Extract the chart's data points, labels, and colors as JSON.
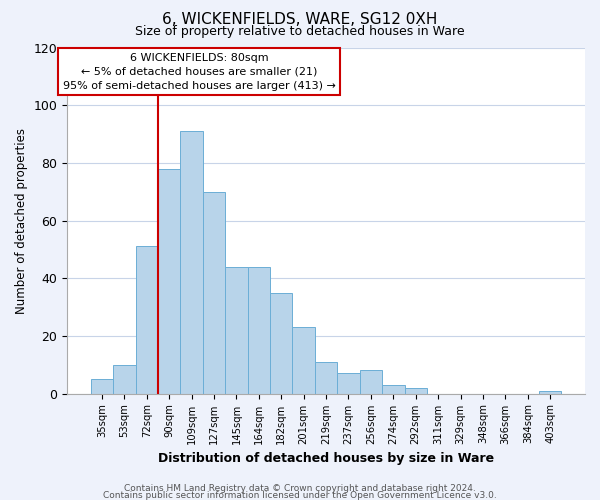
{
  "title": "6, WICKENFIELDS, WARE, SG12 0XH",
  "subtitle": "Size of property relative to detached houses in Ware",
  "xlabel": "Distribution of detached houses by size in Ware",
  "ylabel": "Number of detached properties",
  "bar_labels": [
    "35sqm",
    "53sqm",
    "72sqm",
    "90sqm",
    "109sqm",
    "127sqm",
    "145sqm",
    "164sqm",
    "182sqm",
    "201sqm",
    "219sqm",
    "237sqm",
    "256sqm",
    "274sqm",
    "292sqm",
    "311sqm",
    "329sqm",
    "348sqm",
    "366sqm",
    "384sqm",
    "403sqm"
  ],
  "bar_heights": [
    5,
    10,
    51,
    78,
    91,
    70,
    44,
    44,
    35,
    23,
    11,
    7,
    8,
    3,
    2,
    0,
    0,
    0,
    0,
    0,
    1
  ],
  "bar_color": "#b8d4ea",
  "bar_edge_color": "#6baed6",
  "vline_x_index": 2,
  "vline_color": "#cc0000",
  "ylim": [
    0,
    120
  ],
  "yticks": [
    0,
    20,
    40,
    60,
    80,
    100,
    120
  ],
  "annotation_line1": "6 WICKENFIELDS: 80sqm",
  "annotation_line2": "← 5% of detached houses are smaller (21)",
  "annotation_line3": "95% of semi-detached houses are larger (413) →",
  "footer_line1": "Contains HM Land Registry data © Crown copyright and database right 2024.",
  "footer_line2": "Contains public sector information licensed under the Open Government Licence v3.0.",
  "bg_color": "#eef2fb",
  "plot_bg_color": "#ffffff",
  "grid_color": "#c8d4e8"
}
